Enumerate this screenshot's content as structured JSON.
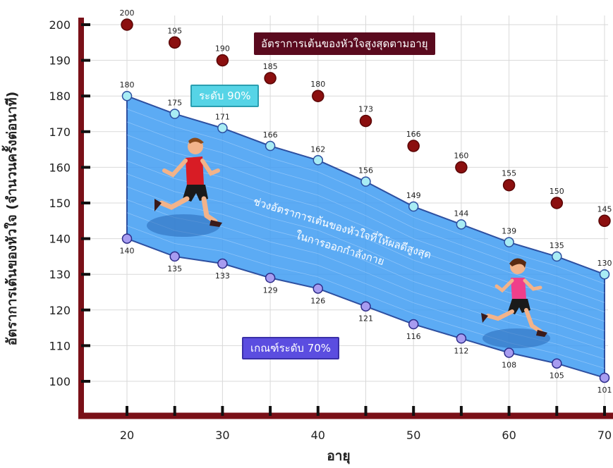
{
  "labels": {
    "ylabel": "อัตราการเต้นของหัวใจ (จำนวนครั้งต่อนาที)",
    "xlabel": "อายุ",
    "max_box": "อัตราการเต้นของหัวใจสูงสุดตามอายุ",
    "box_90": "ระดับ 90%",
    "box_70": "เกณฑ์ระดับ 70%",
    "band_line1": "ช่วงอัตราการเต้นของหัวใจที่ให้ผลดีสูงสุด",
    "band_line2": "ในการออกกำลังกาย"
  },
  "colors": {
    "axis": "#7a1018",
    "max_points": "#8b0f0f",
    "upper_points": "#a8ecf4",
    "lower_points": "#a79cf0",
    "band": "#3f9cf2",
    "grid": "#d9d9d9"
  },
  "chart_data": {
    "type": "scatter",
    "x": [
      20,
      25,
      30,
      35,
      40,
      45,
      50,
      55,
      60,
      65,
      70
    ],
    "x_ticks": [
      "20",
      "30",
      "40",
      "50",
      "60",
      "70"
    ],
    "y_ticks": [
      "100",
      "110",
      "120",
      "130",
      "140",
      "150",
      "160",
      "170",
      "180",
      "190",
      "200"
    ],
    "xlim": [
      20,
      70
    ],
    "ylim": [
      100,
      200
    ],
    "grid": true,
    "series": [
      {
        "key": "max",
        "values": [
          200,
          195,
          190,
          185,
          180,
          173,
          166,
          160,
          155,
          150,
          145
        ]
      },
      {
        "key": "upper",
        "values": [
          180,
          175,
          171,
          166,
          162,
          156,
          149,
          144,
          139,
          135,
          130
        ]
      },
      {
        "key": "lower",
        "values": [
          140,
          135,
          133,
          129,
          126,
          121,
          116,
          112,
          108,
          105,
          101
        ]
      }
    ]
  }
}
